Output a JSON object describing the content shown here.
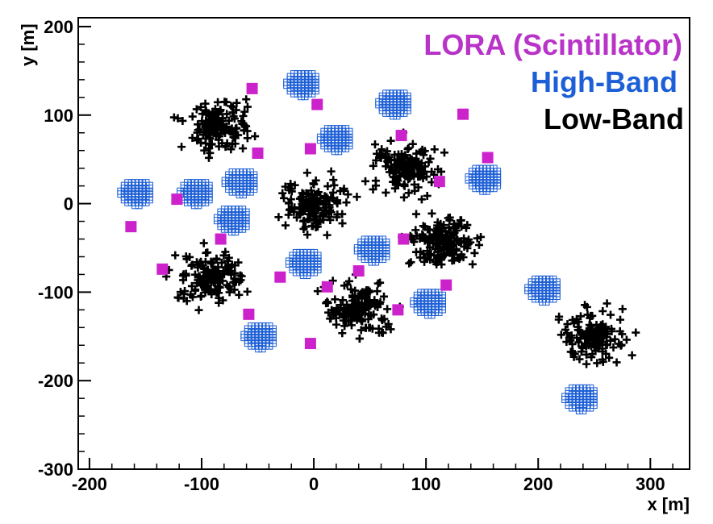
{
  "chart_data": {
    "type": "scatter",
    "title": "",
    "xlabel": "x [m]",
    "ylabel": "y [m]",
    "xlim": [
      -210,
      335
    ],
    "ylim": [
      -300,
      210
    ],
    "x_ticks": [
      -200,
      -100,
      0,
      100,
      200,
      300
    ],
    "x_tick_labels": [
      "-200",
      "-100",
      "0",
      "100",
      "200",
      "300"
    ],
    "y_ticks": [
      -300,
      -200,
      -100,
      0,
      100,
      200
    ],
    "y_tick_labels": [
      "-300",
      "-200",
      "-100",
      "0",
      "100",
      "200"
    ],
    "grid": false,
    "legend_position": "top-right",
    "legend": [
      {
        "label": "LORA (Scintillator)",
        "color": "#b833c8"
      },
      {
        "label": "High-Band",
        "color": "#1d5fd6"
      },
      {
        "label": "Low-Band",
        "color": "#000000"
      }
    ],
    "series": [
      {
        "name": "LORA (Scintillator)",
        "marker": "filled-square",
        "color": "#cc22cc",
        "points": [
          [
            -55,
            130
          ],
          [
            3,
            112
          ],
          [
            133,
            101
          ],
          [
            -50,
            57
          ],
          [
            -3,
            62
          ],
          [
            78,
            77
          ],
          [
            155,
            52
          ],
          [
            112,
            25
          ],
          [
            -122,
            5
          ],
          [
            -163,
            -26
          ],
          [
            -83,
            -40
          ],
          [
            80,
            -40
          ],
          [
            -135,
            -74
          ],
          [
            -30,
            -83
          ],
          [
            40,
            -76
          ],
          [
            12,
            -94
          ],
          [
            118,
            -92
          ],
          [
            -58,
            -125
          ],
          [
            75,
            -120
          ],
          [
            -3,
            -158
          ]
        ]
      },
      {
        "name": "High-Band",
        "marker": "open-square",
        "color": "#1d5fd6",
        "stations": [
          [
            -10,
            135
          ],
          [
            72,
            113
          ],
          [
            20,
            73
          ],
          [
            -158,
            12
          ],
          [
            -105,
            12
          ],
          [
            -65,
            24
          ],
          [
            152,
            28
          ],
          [
            -72,
            -18
          ],
          [
            53,
            -52
          ],
          [
            -8,
            -67
          ],
          [
            103,
            -112
          ],
          [
            205,
            -97
          ],
          [
            -48,
            -150
          ],
          [
            238,
            -220
          ]
        ]
      },
      {
        "name": "Low-Band",
        "marker": "cross",
        "color": "#000000",
        "stations": [
          [
            -88,
            90
          ],
          [
            0,
            0
          ],
          [
            82,
            42
          ],
          [
            -92,
            -82
          ],
          [
            115,
            -42
          ],
          [
            38,
            -118
          ],
          [
            250,
            -150
          ]
        ]
      }
    ]
  }
}
